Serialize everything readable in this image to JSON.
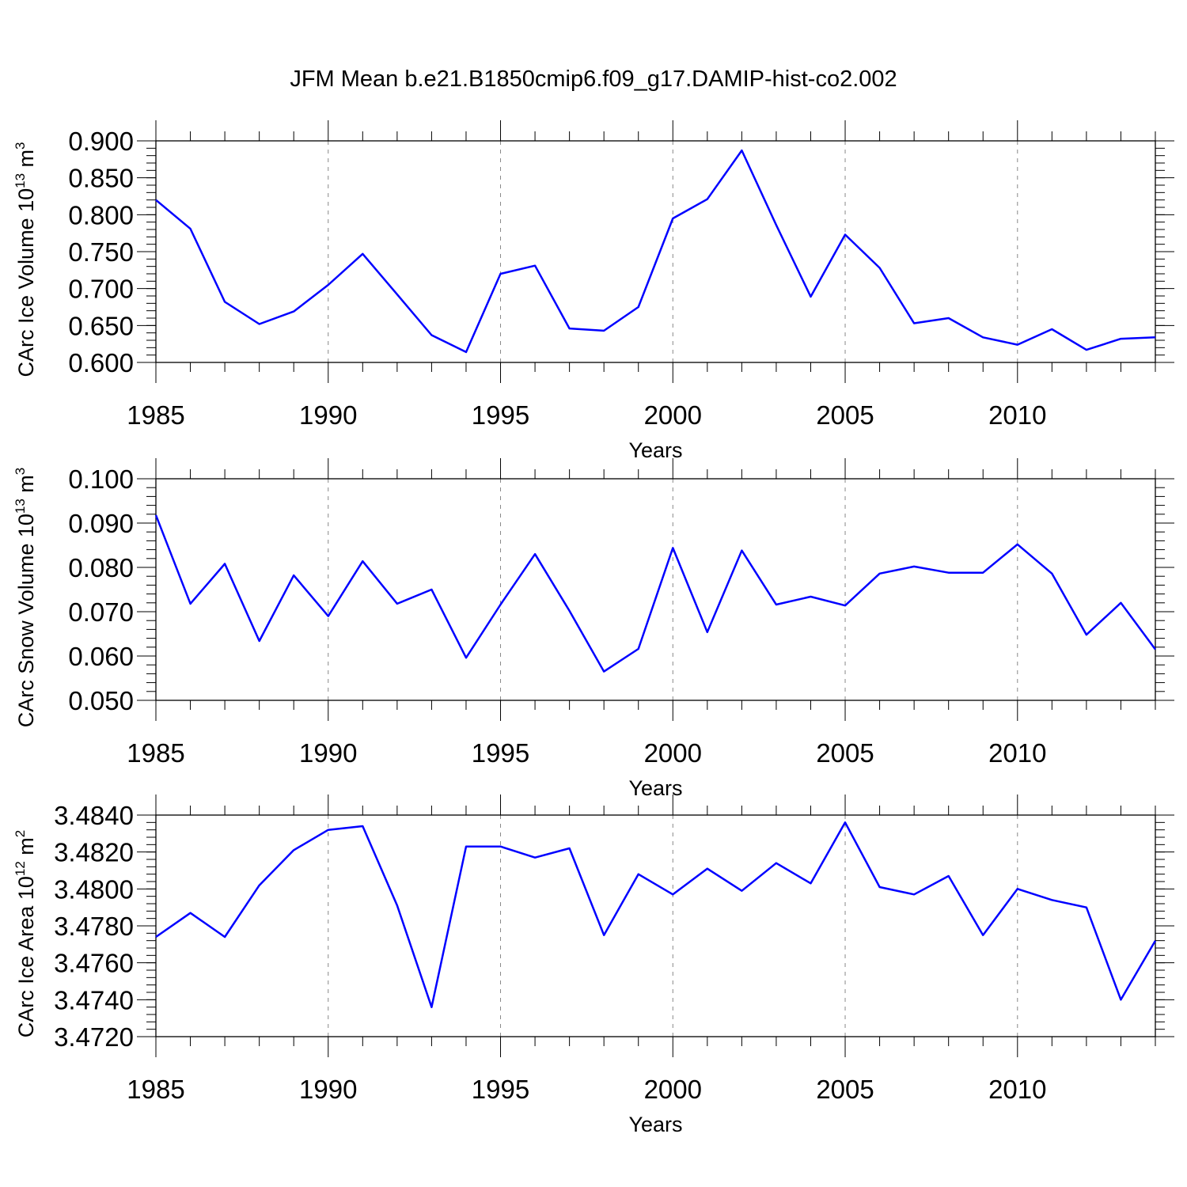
{
  "title": "JFM Mean b.e21.B1850cmip6.f09_g17.DAMIP-hist-co2.002",
  "colors": {
    "line": "#0000ff",
    "axis": "#000000",
    "grid": "#888888"
  },
  "chart_data": [
    {
      "type": "line",
      "ylabel_main": "CArc Ice Volume 10",
      "ylabel_sup": "13",
      "ylabel_unit": " m",
      "ylabel_unit_sup": "3",
      "xlabel": "Years",
      "xlim": [
        1985,
        2014
      ],
      "ylim": [
        0.6,
        0.9
      ],
      "yticks": [
        0.6,
        0.65,
        0.7,
        0.75,
        0.8,
        0.85,
        0.9
      ],
      "ytick_labels": [
        "0.600",
        "0.650",
        "0.700",
        "0.750",
        "0.800",
        "0.850",
        "0.900"
      ],
      "yminor_step": 0.01,
      "xticks": [
        1985,
        1990,
        1995,
        2000,
        2005,
        2010
      ],
      "xtick_labels": [
        "1985",
        "1990",
        "1995",
        "2000",
        "2005",
        "2010"
      ],
      "x": [
        1985,
        1986,
        1987,
        1988,
        1989,
        1990,
        1991,
        1992,
        1993,
        1994,
        1995,
        1996,
        1997,
        1998,
        1999,
        2000,
        2001,
        2002,
        2003,
        2004,
        2005,
        2006,
        2007,
        2008,
        2009,
        2010,
        2011,
        2012,
        2013,
        2014
      ],
      "y": [
        0.82,
        0.781,
        0.682,
        0.652,
        0.669,
        0.705,
        0.747,
        0.692,
        0.637,
        0.614,
        0.72,
        0.731,
        0.646,
        0.643,
        0.675,
        0.795,
        0.821,
        0.887,
        0.786,
        0.689,
        0.773,
        0.728,
        0.653,
        0.66,
        0.634,
        0.624,
        0.645,
        0.617,
        0.632,
        0.634
      ]
    },
    {
      "type": "line",
      "ylabel_main": "CArc Snow Volume 10",
      "ylabel_sup": "13",
      "ylabel_unit": " m",
      "ylabel_unit_sup": "3",
      "xlabel": "Years",
      "xlim": [
        1985,
        2014
      ],
      "ylim": [
        0.05,
        0.1
      ],
      "yticks": [
        0.05,
        0.06,
        0.07,
        0.08,
        0.09,
        0.1
      ],
      "ytick_labels": [
        "0.050",
        "0.060",
        "0.070",
        "0.080",
        "0.090",
        "0.100"
      ],
      "yminor_step": 0.002,
      "xticks": [
        1985,
        1990,
        1995,
        2000,
        2005,
        2010
      ],
      "xtick_labels": [
        "1985",
        "1990",
        "1995",
        "2000",
        "2005",
        "2010"
      ],
      "x": [
        1985,
        1986,
        1987,
        1988,
        1989,
        1990,
        1991,
        1992,
        1993,
        1994,
        1995,
        1996,
        1997,
        1998,
        1999,
        2000,
        2001,
        2002,
        2003,
        2004,
        2005,
        2006,
        2007,
        2008,
        2009,
        2010,
        2011,
        2012,
        2013,
        2014
      ],
      "y": [
        0.0918,
        0.0718,
        0.0808,
        0.0634,
        0.0782,
        0.069,
        0.0814,
        0.0718,
        0.075,
        0.0596,
        0.0716,
        0.083,
        0.0702,
        0.0565,
        0.0616,
        0.0844,
        0.0654,
        0.0838,
        0.0716,
        0.0734,
        0.0714,
        0.0786,
        0.0802,
        0.0788,
        0.0788,
        0.0852,
        0.0786,
        0.0648,
        0.072,
        0.0615
      ]
    },
    {
      "type": "line",
      "ylabel_main": "CArc Ice Area 10",
      "ylabel_sup": "12",
      "ylabel_unit": " m",
      "ylabel_unit_sup": "2",
      "xlabel": "Years",
      "xlim": [
        1985,
        2014
      ],
      "ylim": [
        3.472,
        3.484
      ],
      "yticks": [
        3.472,
        3.474,
        3.476,
        3.478,
        3.48,
        3.482,
        3.484
      ],
      "ytick_labels": [
        "3.4720",
        "3.4740",
        "3.4760",
        "3.4780",
        "3.4800",
        "3.4820",
        "3.4840"
      ],
      "yminor_step": 0.0004,
      "xticks": [
        1985,
        1990,
        1995,
        2000,
        2005,
        2010
      ],
      "xtick_labels": [
        "1985",
        "1990",
        "1995",
        "2000",
        "2005",
        "2010"
      ],
      "x": [
        1985,
        1986,
        1987,
        1988,
        1989,
        1990,
        1991,
        1992,
        1993,
        1994,
        1995,
        1996,
        1997,
        1998,
        1999,
        2000,
        2001,
        2002,
        2003,
        2004,
        2005,
        2006,
        2007,
        2008,
        2009,
        2010,
        2011,
        2012,
        2013,
        2014
      ],
      "y": [
        3.4774,
        3.4787,
        3.4774,
        3.4802,
        3.4821,
        3.4832,
        3.4834,
        3.4791,
        3.4736,
        3.4823,
        3.4823,
        3.4817,
        3.4822,
        3.4775,
        3.4808,
        3.4797,
        3.4811,
        3.4799,
        3.4814,
        3.4803,
        3.4836,
        3.4801,
        3.4797,
        3.4807,
        3.4775,
        3.48,
        3.4794,
        3.479,
        3.474,
        3.4772
      ]
    }
  ]
}
